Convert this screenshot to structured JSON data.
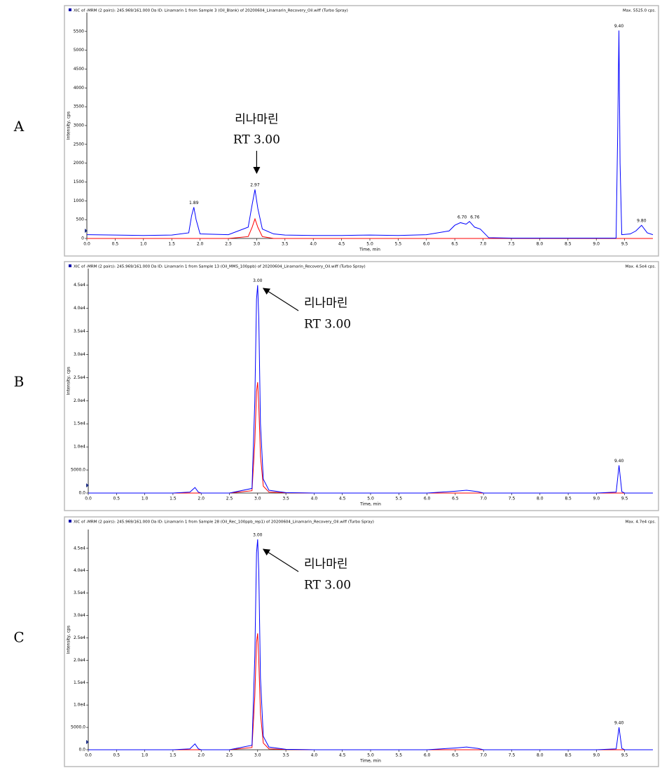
{
  "panel_labels": [
    "A",
    "B",
    "C"
  ],
  "chart_data": [
    {
      "type": "line",
      "title": "XIC of -MRM (2 pairs): 245.969/161.000 Da ID: Linamarin 1 from Sample 3 (Oil_Blank) of 20200604_Linamarin_Recovery_Oil.wiff (Turbo Spray)",
      "subtitle": "Max. 5525.0 cps.",
      "x_label": "Time, min",
      "y_label": "Intensity, cps",
      "annotation": [
        "리나마린",
        "RT 3.00"
      ],
      "x": [
        0,
        0.5,
        1.0,
        1.5,
        1.8,
        1.85,
        1.89,
        1.93,
        2.0,
        2.5,
        2.85,
        2.92,
        2.97,
        3.02,
        3.1,
        3.3,
        3.5,
        4.0,
        4.5,
        5.0,
        5.5,
        6.0,
        6.4,
        6.5,
        6.6,
        6.7,
        6.76,
        6.85,
        6.95,
        7.1,
        7.5,
        8.0,
        8.5,
        9.0,
        9.35,
        9.38,
        9.4,
        9.42,
        9.45,
        9.6,
        9.7,
        9.8,
        9.9,
        10.0
      ],
      "series": [
        {
          "color": "#0000ff",
          "values": [
            100,
            90,
            80,
            90,
            150,
            600,
            830,
            500,
            120,
            100,
            300,
            900,
            1300,
            800,
            250,
            120,
            90,
            80,
            80,
            90,
            80,
            100,
            200,
            350,
            420,
            380,
            450,
            300,
            250,
            20,
            10,
            10,
            10,
            10,
            10,
            3000,
            5525,
            2000,
            100,
            120,
            200,
            350,
            150,
            100
          ]
        },
        {
          "color": "#ff0000",
          "values": [
            0,
            0,
            0,
            0,
            0,
            0,
            0,
            0,
            0,
            0,
            50,
            300,
            520,
            300,
            50,
            0,
            0,
            0,
            0,
            0,
            0,
            0,
            0,
            0,
            0,
            0,
            0,
            0,
            0,
            0,
            0,
            0,
            0,
            0,
            0,
            0,
            0,
            0,
            0,
            0,
            0,
            0,
            0,
            0
          ]
        }
      ],
      "peak_labels": [
        1.89,
        2.97,
        {
          "value": 6.7,
          "label": "6.70"
        },
        6.76,
        {
          "value": 9.4,
          "label": "9.40"
        },
        {
          "value": 9.8,
          "label": "9.80"
        }
      ],
      "xlim": [
        0,
        10
      ],
      "ylim": [
        0,
        6000
      ],
      "xticks": [
        {
          "value": 0,
          "label": "0.0"
        },
        0.5,
        {
          "value": 1,
          "label": "1.0"
        },
        1.5,
        {
          "value": 2,
          "label": "2.0"
        },
        2.5,
        {
          "value": 3,
          "label": "3.0"
        },
        3.5,
        {
          "value": 4,
          "label": "4.0"
        },
        4.5,
        {
          "value": 5,
          "label": "5.0"
        },
        5.5,
        {
          "value": 6,
          "label": "6.0"
        },
        6.5,
        {
          "value": 7,
          "label": "7.0"
        },
        7.5,
        {
          "value": 8,
          "label": "8.0"
        },
        8.5,
        {
          "value": 9,
          "label": "9.0"
        },
        9.5
      ],
      "yticks": [
        0,
        500,
        1000,
        1500,
        2000,
        2500,
        3000,
        3500,
        4000,
        4500,
        5000,
        5500
      ]
    },
    {
      "type": "line",
      "title": "XIC of -MRM (2 pairs): 245.969/161.000 Da ID: Linamarin 1 from Sample 13 (Oil_MMS_100ppb) of 20200604_Linamarin_Recovery_Oil.wiff (Turbo Spray)",
      "subtitle": "Max. 4.5e4 cps.",
      "x_label": "Time, min",
      "y_label": "Intensity, cps",
      "annotation": [
        "리나마린",
        "RT 3.00"
      ],
      "x": [
        0,
        0.5,
        1.0,
        1.5,
        1.8,
        1.89,
        1.95,
        2.0,
        2.5,
        2.9,
        2.95,
        2.98,
        3.0,
        3.02,
        3.05,
        3.1,
        3.2,
        3.5,
        4.0,
        4.5,
        5.0,
        5.5,
        6.0,
        6.5,
        6.7,
        6.9,
        7.0,
        7.5,
        8.0,
        8.5,
        9.0,
        9.35,
        9.4,
        9.45,
        9.5,
        9.8,
        10.0
      ],
      "series": [
        {
          "color": "#0000ff",
          "values": [
            0,
            0,
            0,
            0,
            200,
            1200,
            200,
            0,
            0,
            1000,
            20000,
            42000,
            45000,
            38000,
            15000,
            3000,
            600,
            100,
            0,
            0,
            0,
            0,
            0,
            400,
            600,
            300,
            0,
            0,
            0,
            0,
            0,
            200,
            6000,
            300,
            0,
            0,
            0
          ]
        },
        {
          "color": "#ff0000",
          "values": [
            0,
            0,
            0,
            0,
            0,
            0,
            0,
            0,
            0,
            500,
            11000,
            22000,
            24000,
            19000,
            8000,
            1500,
            200,
            50,
            0,
            0,
            0,
            0,
            0,
            0,
            0,
            0,
            0,
            0,
            0,
            0,
            0,
            0,
            0,
            0,
            0,
            0,
            0
          ]
        }
      ],
      "peak_labels": [
        {
          "value": 3,
          "label": "3.00"
        },
        {
          "value": 9.4,
          "label": "9.40"
        }
      ],
      "xlim": [
        0,
        10
      ],
      "ylim": [
        0,
        48600
      ],
      "xticks": [
        {
          "value": 0,
          "label": "0.0"
        },
        0.5,
        {
          "value": 1,
          "label": "1.0"
        },
        1.5,
        {
          "value": 2,
          "label": "2.0"
        },
        2.5,
        {
          "value": 3,
          "label": "3.0"
        },
        3.5,
        {
          "value": 4,
          "label": "4.0"
        },
        4.5,
        {
          "value": 5,
          "label": "5.0"
        },
        5.5,
        {
          "value": 6,
          "label": "6.0"
        },
        6.5,
        {
          "value": 7,
          "label": "7.0"
        },
        7.5,
        {
          "value": 8,
          "label": "8.0"
        },
        8.5,
        {
          "value": 9,
          "label": "9.0"
        },
        9.5
      ],
      "yticks": [
        {
          "value": 0,
          "label": "0.0"
        },
        {
          "value": 5000,
          "label": "5000.0"
        },
        {
          "value": 10000,
          "label": "1.0e4"
        },
        {
          "value": 15000,
          "label": "1.5e4"
        },
        {
          "value": 20000,
          "label": "2.0e4"
        },
        {
          "value": 25000,
          "label": "2.5e4"
        },
        {
          "value": 30000,
          "label": "3.0e4"
        },
        {
          "value": 35000,
          "label": "3.5e4"
        },
        {
          "value": 40000,
          "label": "4.0e4"
        },
        {
          "value": 45000,
          "label": "4.5e4"
        }
      ]
    },
    {
      "type": "line",
      "title": "XIC of -MRM (2 pairs): 245.969/161.000 Da ID: Linamarin 1 from Sample 28 (Oil_Rec_100ppb_rep1) of 20200604_Linamarin_Recovery_Oil.wiff (Turbo Spray)",
      "subtitle": "Max. 4.7e4 cps.",
      "x_label": "Time, min",
      "y_label": "Intensity, cps",
      "annotation": [
        "리나마린",
        "RT 3.00"
      ],
      "x": [
        0,
        0.5,
        1.0,
        1.5,
        1.8,
        1.89,
        1.95,
        2.0,
        2.5,
        2.9,
        2.95,
        2.98,
        3.0,
        3.02,
        3.05,
        3.1,
        3.2,
        3.5,
        4.0,
        4.5,
        5.0,
        5.5,
        6.0,
        6.5,
        6.7,
        6.9,
        7.0,
        7.5,
        8.0,
        8.5,
        9.0,
        9.35,
        9.4,
        9.45,
        9.5,
        9.8,
        10.0
      ],
      "series": [
        {
          "color": "#0000ff",
          "values": [
            0,
            0,
            0,
            0,
            200,
            1300,
            200,
            0,
            0,
            1000,
            21000,
            44000,
            47000,
            40000,
            16000,
            3000,
            600,
            100,
            0,
            0,
            0,
            0,
            0,
            400,
            600,
            300,
            0,
            0,
            0,
            0,
            0,
            200,
            5000,
            300,
            0,
            0,
            0
          ]
        },
        {
          "color": "#ff0000",
          "values": [
            0,
            0,
            0,
            0,
            0,
            0,
            0,
            0,
            0,
            500,
            12000,
            24000,
            26000,
            20000,
            8000,
            1500,
            200,
            50,
            0,
            0,
            0,
            0,
            0,
            0,
            0,
            0,
            0,
            0,
            0,
            0,
            0,
            0,
            0,
            0,
            0,
            0,
            0
          ]
        }
      ],
      "peak_labels": [
        {
          "value": 3,
          "label": "3.00"
        },
        {
          "value": 9.4,
          "label": "9.40"
        }
      ],
      "xlim": [
        0,
        10
      ],
      "ylim": [
        0,
        49200
      ],
      "xticks": [
        {
          "value": 0,
          "label": "0.0"
        },
        0.5,
        {
          "value": 1,
          "label": "1.0"
        },
        1.5,
        {
          "value": 2,
          "label": "2.0"
        },
        2.5,
        {
          "value": 3,
          "label": "3.0"
        },
        3.5,
        {
          "value": 4,
          "label": "4.0"
        },
        4.5,
        {
          "value": 5,
          "label": "5.0"
        },
        5.5,
        {
          "value": 6,
          "label": "6.0"
        },
        6.5,
        {
          "value": 7,
          "label": "7.0"
        },
        7.5,
        {
          "value": 8,
          "label": "8.0"
        },
        8.5,
        {
          "value": 9,
          "label": "9.0"
        },
        9.5
      ],
      "yticks": [
        {
          "value": 0,
          "label": "0.0"
        },
        {
          "value": 5000,
          "label": "5000.0"
        },
        {
          "value": 10000,
          "label": "1.0e4"
        },
        {
          "value": 15000,
          "label": "1.5e4"
        },
        {
          "value": 20000,
          "label": "2.0e4"
        },
        {
          "value": 25000,
          "label": "2.5e4"
        },
        {
          "value": 30000,
          "label": "3.0e4"
        },
        {
          "value": 35000,
          "label": "3.5e4"
        },
        {
          "value": 40000,
          "label": "4.0e4"
        },
        {
          "value": 45000,
          "label": "4.5e4"
        }
      ]
    }
  ]
}
